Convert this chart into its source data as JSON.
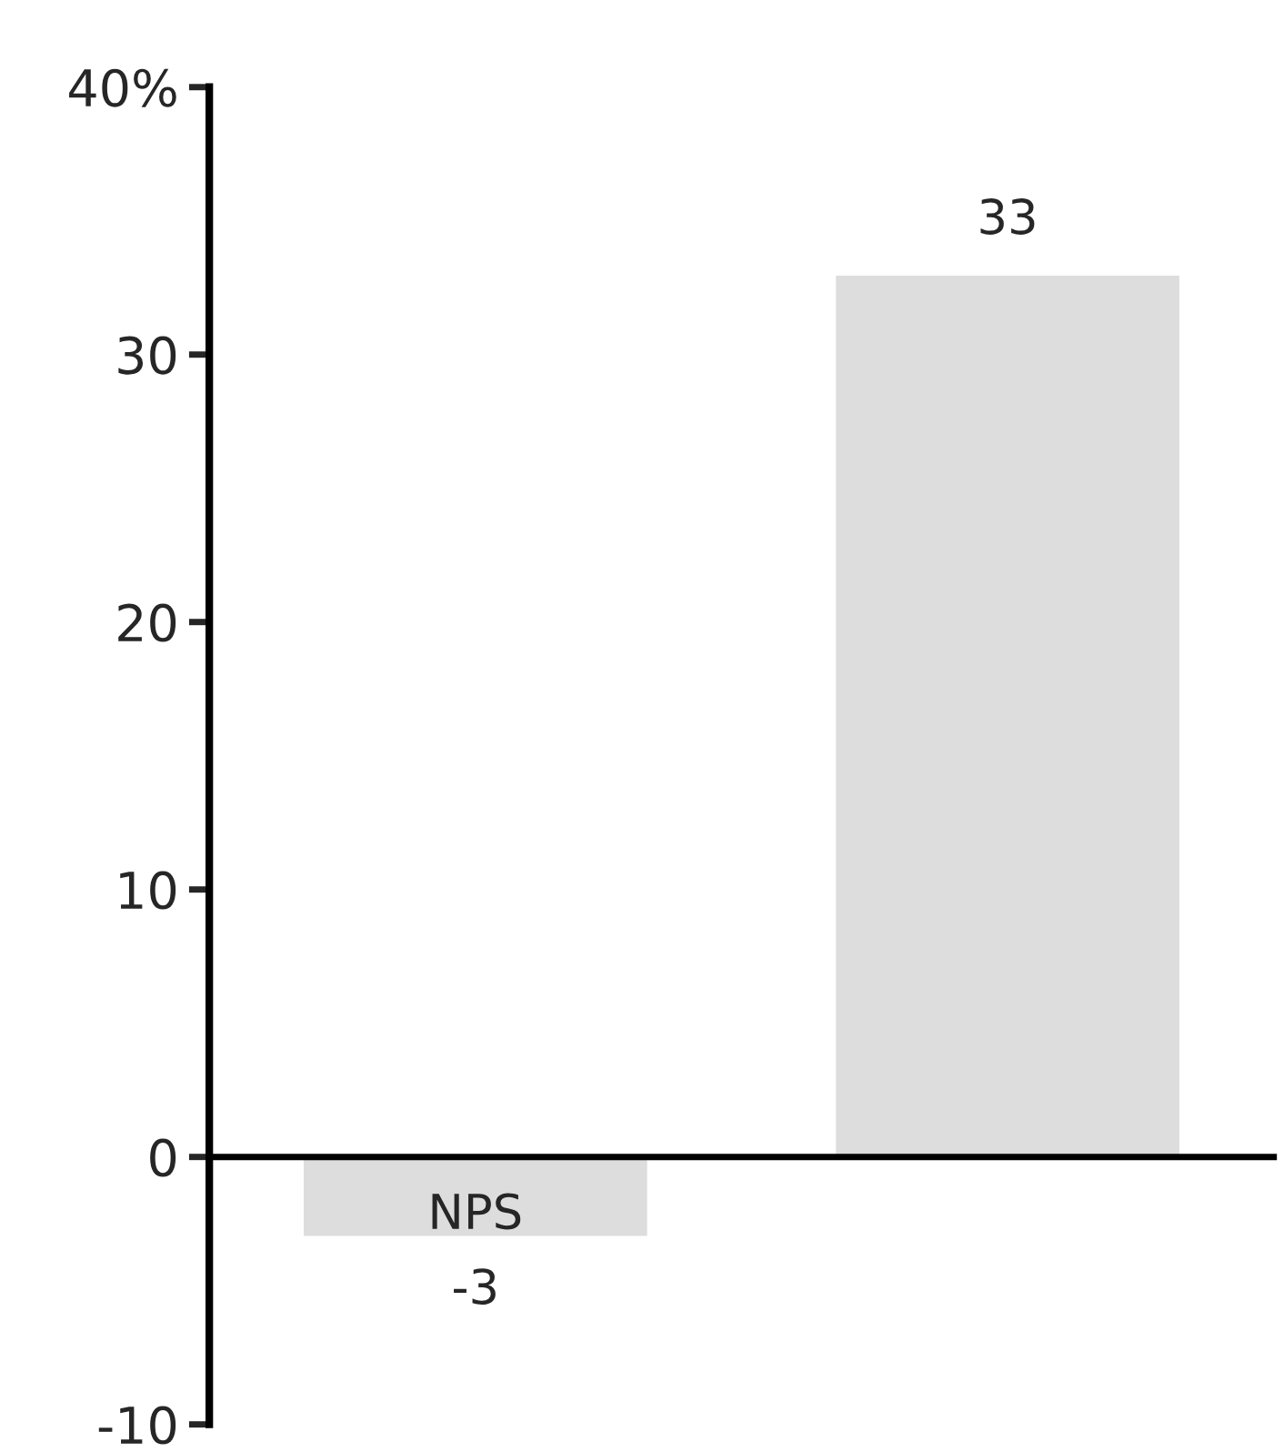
{
  "chart_data": {
    "type": "bar",
    "categories": [
      "NPS",
      null
    ],
    "values": [
      -3,
      33
    ],
    "color": "#dddddd",
    "ylim": [
      -10,
      40
    ],
    "yticks": [
      -10,
      0,
      10,
      20,
      30,
      {
        "value": 40,
        "label": "40%"
      }
    ],
    "data_labels": true,
    "legend": false
  }
}
